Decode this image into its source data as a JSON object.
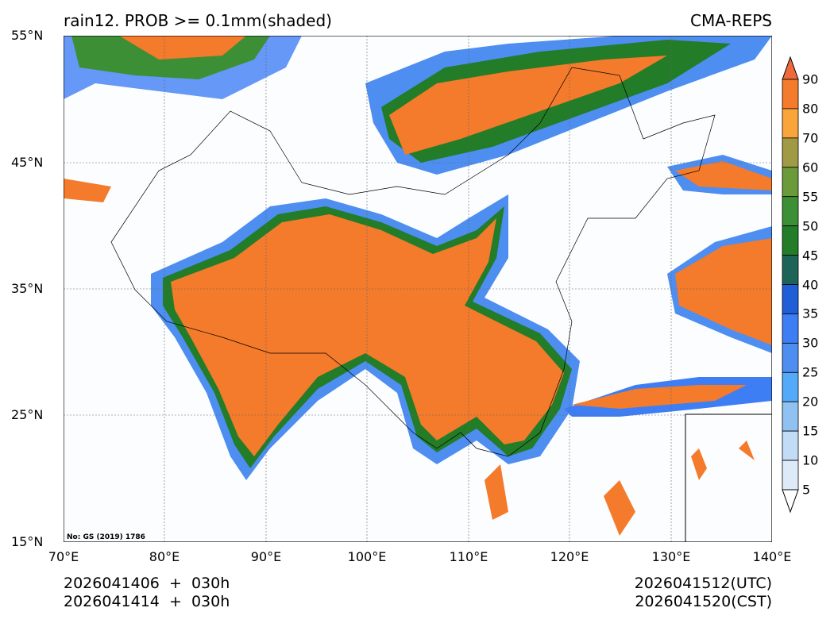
{
  "header": {
    "title_left": "rain12. PROB >= 0.1mm(shaded)",
    "title_right": "CMA-REPS"
  },
  "axes": {
    "lat_labels": [
      "55°N",
      "45°N",
      "35°N",
      "25°N",
      "15°N"
    ],
    "lon_labels": [
      "70°E",
      "80°E",
      "90°E",
      "100°E",
      "110°E",
      "120°E",
      "130°E",
      "140°E"
    ]
  },
  "map": {
    "approval_note": "No: GS (2019) 1786"
  },
  "footer": {
    "init_utc": "2026041406  +  030h",
    "init_cst": "2026041414  +  030h",
    "valid_utc": "2026041512(UTC)",
    "valid_cst": "2026041520(CST)"
  },
  "colorbar": {
    "labels": [
      "90",
      "80",
      "70",
      "60",
      "55",
      "50",
      "45",
      "40",
      "35",
      "30",
      "25",
      "20",
      "15",
      "10",
      "5"
    ],
    "colors": [
      "#f47a2c",
      "#f9a53c",
      "#a09a45",
      "#6a9a3a",
      "#3d8f35",
      "#227c28",
      "#1e6357",
      "#1f5ed6",
      "#3e7ef5",
      "#4d8ef0",
      "#53aaf8",
      "#8fc2f0",
      "#c2dcf5",
      "#ddebf8"
    ],
    "over_color": "#ee6a3a",
    "under_color": "#ffffff"
  }
}
